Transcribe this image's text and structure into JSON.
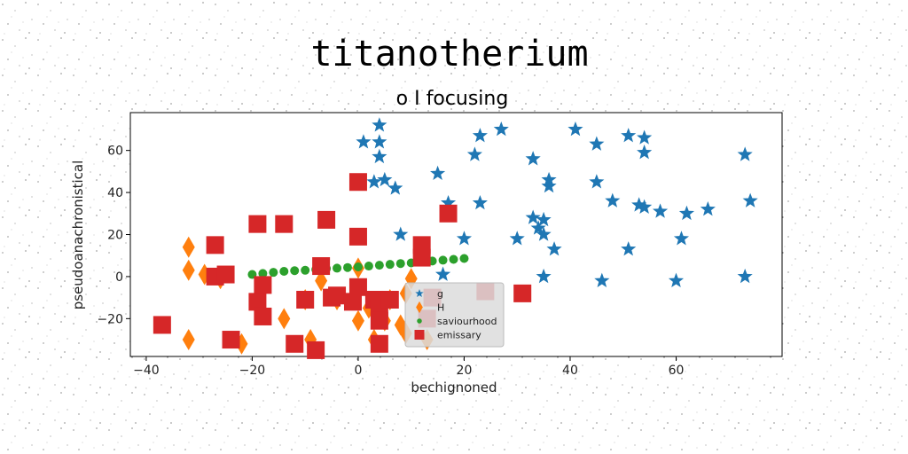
{
  "chart_data": {
    "type": "scatter",
    "title": "titanotherium",
    "subtitle": "o I focusing",
    "xlabel": "bechignoned",
    "ylabel": "pseudoanachronistical",
    "xlim": [
      -43,
      80
    ],
    "ylim": [
      -38,
      78
    ],
    "xticks": [
      -40,
      -20,
      0,
      20,
      40,
      60
    ],
    "yticks": [
      -20,
      0,
      20,
      40,
      60
    ],
    "grid": false,
    "legend_position": "lower-center",
    "series": [
      {
        "name": "g",
        "marker": "star",
        "color": "#1f77b4",
        "points": [
          [
            4,
            72
          ],
          [
            1,
            64
          ],
          [
            4,
            64
          ],
          [
            4,
            57
          ],
          [
            3,
            45
          ],
          [
            5,
            46
          ],
          [
            7,
            42
          ],
          [
            15,
            49
          ],
          [
            17,
            35
          ],
          [
            23,
            67
          ],
          [
            22,
            58
          ],
          [
            27,
            70
          ],
          [
            33,
            56
          ],
          [
            36,
            46
          ],
          [
            36,
            43
          ],
          [
            41,
            70
          ],
          [
            45,
            63
          ],
          [
            51,
            67
          ],
          [
            54,
            66
          ],
          [
            54,
            59
          ],
          [
            45,
            45
          ],
          [
            48,
            36
          ],
          [
            53,
            34
          ],
          [
            54,
            33
          ],
          [
            57,
            31
          ],
          [
            62,
            30
          ],
          [
            66,
            32
          ],
          [
            73,
            58
          ],
          [
            74,
            36
          ],
          [
            23,
            35
          ],
          [
            33,
            28
          ],
          [
            35,
            27
          ],
          [
            34,
            23
          ],
          [
            35,
            20
          ],
          [
            30,
            18
          ],
          [
            37,
            13
          ],
          [
            51,
            13
          ],
          [
            61,
            18
          ],
          [
            20,
            18
          ],
          [
            8,
            20
          ],
          [
            16,
            1
          ],
          [
            35,
            0
          ],
          [
            46,
            -2
          ],
          [
            60,
            -2
          ],
          [
            73,
            0
          ]
        ]
      },
      {
        "name": "H",
        "marker": "diamond",
        "color": "#ff7f0e",
        "points": [
          [
            -32,
            14
          ],
          [
            -32,
            3
          ],
          [
            -29,
            1
          ],
          [
            -32,
            -30
          ],
          [
            -26,
            -1
          ],
          [
            -22,
            -32
          ],
          [
            -10,
            -11
          ],
          [
            -9,
            -30
          ],
          [
            -7,
            -2
          ],
          [
            -4,
            -11
          ],
          [
            0,
            -21
          ],
          [
            0,
            4
          ],
          [
            2,
            -15
          ],
          [
            3,
            -30
          ],
          [
            5,
            -21
          ],
          [
            6,
            -11
          ],
          [
            8,
            -23
          ],
          [
            9,
            -27
          ],
          [
            9,
            -8
          ],
          [
            10,
            -1
          ],
          [
            13,
            -30
          ],
          [
            -14,
            -20
          ]
        ]
      },
      {
        "name": "saviourhood",
        "marker": "circle",
        "color": "#2ca02c",
        "points": [
          [
            -20,
            1
          ],
          [
            -18,
            1.5
          ],
          [
            -16,
            2
          ],
          [
            -14,
            2.5
          ],
          [
            -12,
            2.8
          ],
          [
            -10,
            3
          ],
          [
            -8,
            3.4
          ],
          [
            -6,
            3.8
          ],
          [
            -4,
            4
          ],
          [
            -2,
            4.3
          ],
          [
            0,
            4.6
          ],
          [
            2,
            5
          ],
          [
            4,
            5.4
          ],
          [
            6,
            5.8
          ],
          [
            8,
            6.2
          ],
          [
            10,
            6.5
          ],
          [
            12,
            7
          ],
          [
            14,
            7.4
          ],
          [
            16,
            7.8
          ],
          [
            18,
            8.2
          ],
          [
            20,
            8.6
          ]
        ]
      },
      {
        "name": "emissary",
        "marker": "square",
        "color": "#d62728",
        "points": [
          [
            -37,
            -23
          ],
          [
            -27,
            15
          ],
          [
            -27,
            0
          ],
          [
            -25,
            1
          ],
          [
            -24,
            -30
          ],
          [
            -19,
            25
          ],
          [
            -18,
            -4
          ],
          [
            -19,
            -12
          ],
          [
            -18,
            -19
          ],
          [
            -14,
            25
          ],
          [
            -12,
            -32
          ],
          [
            -10,
            -11
          ],
          [
            -8,
            -35
          ],
          [
            -6,
            27
          ],
          [
            -7,
            5
          ],
          [
            -5,
            -10
          ],
          [
            -4,
            -9
          ],
          [
            -1,
            -12
          ],
          [
            0,
            45
          ],
          [
            0,
            19
          ],
          [
            0,
            -5
          ],
          [
            3,
            -11
          ],
          [
            4,
            -15
          ],
          [
            4,
            -21
          ],
          [
            4,
            -32
          ],
          [
            6,
            -11
          ],
          [
            12,
            15
          ],
          [
            12,
            9
          ],
          [
            17,
            30
          ],
          [
            24,
            -7
          ],
          [
            31,
            -8
          ],
          [
            14,
            -10
          ],
          [
            13,
            -20
          ]
        ]
      }
    ]
  }
}
